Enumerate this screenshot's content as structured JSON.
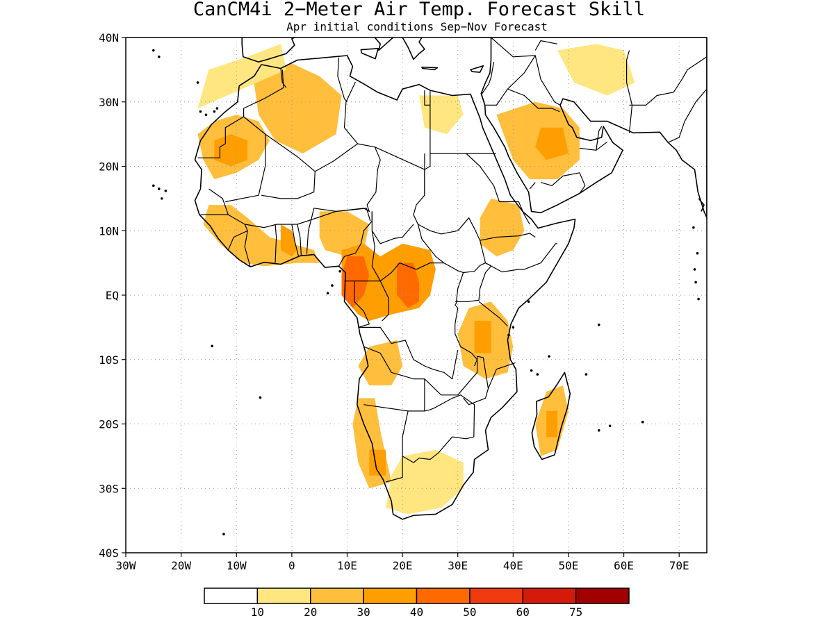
{
  "title": "CanCM4i 2−Meter Air Temp. Forecast Skill",
  "subtitle": "Apr initial conditions  Sep−Nov Forecast",
  "map": {
    "lon_range": [
      -30,
      75
    ],
    "lat_range": [
      -40,
      40
    ],
    "x_ticks": [
      "30W",
      "20W",
      "10W",
      "0",
      "10E",
      "20E",
      "30E",
      "40E",
      "50E",
      "60E",
      "70E"
    ],
    "y_ticks": [
      "40N",
      "30N",
      "20N",
      "10N",
      "EQ",
      "10S",
      "20S",
      "30S",
      "40S"
    ],
    "grid": true
  },
  "colorbar": {
    "labels": [
      "10",
      "20",
      "30",
      "40",
      "50",
      "60",
      "75"
    ],
    "colors": [
      "#ffffff",
      "#ffe680",
      "#ffbe3c",
      "#ff9e00",
      "#ff6a00",
      "#f03a10",
      "#d41a0a",
      "#a00000"
    ]
  },
  "skill_regions": [
    {
      "level": 2,
      "points": [
        [
          -17,
          25
        ],
        [
          -14,
          27
        ],
        [
          -10,
          28
        ],
        [
          -6,
          27
        ],
        [
          -4,
          24
        ],
        [
          -6,
          21
        ],
        [
          -10,
          19
        ],
        [
          -14,
          18
        ],
        [
          -16,
          21
        ]
      ]
    },
    {
      "level": 3,
      "points": [
        [
          -14,
          24
        ],
        [
          -11,
          25
        ],
        [
          -8,
          24
        ],
        [
          -8,
          21
        ],
        [
          -11,
          20
        ],
        [
          -14,
          21
        ]
      ]
    },
    {
      "level": 2,
      "points": [
        [
          -7,
          34
        ],
        [
          0,
          36
        ],
        [
          5,
          34
        ],
        [
          9,
          31
        ],
        [
          8,
          25
        ],
        [
          2,
          22
        ],
        [
          -3,
          24
        ],
        [
          -6,
          28
        ]
      ]
    },
    {
      "level": 2,
      "points": [
        [
          -15,
          14
        ],
        [
          -11,
          14
        ],
        [
          -8,
          12
        ],
        [
          -4,
          9
        ],
        [
          0,
          8
        ],
        [
          4,
          7
        ],
        [
          5,
          5
        ],
        [
          1,
          5
        ],
        [
          -5,
          4.5
        ],
        [
          -9,
          5
        ],
        [
          -13,
          8
        ],
        [
          -16,
          11
        ]
      ]
    },
    {
      "level": 3,
      "points": [
        [
          -2,
          11
        ],
        [
          0,
          10
        ],
        [
          1,
          7
        ],
        [
          0,
          6
        ],
        [
          -2,
          7
        ]
      ]
    },
    {
      "level": 2,
      "points": [
        [
          5,
          13
        ],
        [
          10,
          13
        ],
        [
          14,
          11
        ],
        [
          13,
          7
        ],
        [
          10,
          6
        ],
        [
          6,
          7
        ],
        [
          5,
          9
        ]
      ]
    },
    {
      "level": 3,
      "points": [
        [
          9,
          7
        ],
        [
          13,
          8
        ],
        [
          16,
          6
        ],
        [
          20,
          8
        ],
        [
          25,
          7
        ],
        [
          26,
          4
        ],
        [
          25,
          0
        ],
        [
          23,
          -2
        ],
        [
          18,
          -3
        ],
        [
          14,
          -4
        ],
        [
          12,
          -3
        ],
        [
          9,
          0
        ],
        [
          9,
          4
        ]
      ]
    },
    {
      "level": 4,
      "points": [
        [
          10,
          6
        ],
        [
          13,
          6
        ],
        [
          14,
          3
        ],
        [
          13,
          0
        ],
        [
          11,
          -2
        ],
        [
          9,
          0
        ],
        [
          9,
          3
        ]
      ]
    },
    {
      "level": 4,
      "points": [
        [
          19,
          5
        ],
        [
          22,
          5
        ],
        [
          23,
          2
        ],
        [
          23,
          -1
        ],
        [
          21,
          -2
        ],
        [
          19,
          0
        ]
      ]
    },
    {
      "level": 2,
      "points": [
        [
          14,
          -8
        ],
        [
          19,
          -7
        ],
        [
          20,
          -11
        ],
        [
          18,
          -14
        ],
        [
          14,
          -14
        ],
        [
          12,
          -11
        ]
      ]
    },
    {
      "level": 2,
      "points": [
        [
          12,
          -16
        ],
        [
          15,
          -16
        ],
        [
          16,
          -21
        ],
        [
          17,
          -25
        ],
        [
          18,
          -29
        ],
        [
          14,
          -30
        ],
        [
          12,
          -26
        ],
        [
          11,
          -20
        ]
      ]
    },
    {
      "level": 3,
      "points": [
        [
          14,
          -24
        ],
        [
          17,
          -24
        ],
        [
          17,
          -28
        ],
        [
          14,
          -28
        ]
      ]
    },
    {
      "level": 1,
      "points": [
        [
          20,
          -25
        ],
        [
          26,
          -24
        ],
        [
          31,
          -26
        ],
        [
          31,
          -30
        ],
        [
          27,
          -33
        ],
        [
          21,
          -34
        ],
        [
          17,
          -33
        ],
        [
          18,
          -28
        ]
      ]
    },
    {
      "level": 2,
      "points": [
        [
          32,
          -2
        ],
        [
          36,
          -1
        ],
        [
          39,
          -4
        ],
        [
          40,
          -8
        ],
        [
          39,
          -12
        ],
        [
          35,
          -13
        ],
        [
          31,
          -11
        ],
        [
          30,
          -6
        ]
      ]
    },
    {
      "level": 3,
      "points": [
        [
          33,
          -4
        ],
        [
          36,
          -4
        ],
        [
          36,
          -9
        ],
        [
          33,
          -9
        ]
      ]
    },
    {
      "level": 2,
      "points": [
        [
          36,
          15
        ],
        [
          41,
          14
        ],
        [
          42,
          10
        ],
        [
          40,
          7
        ],
        [
          37,
          6
        ],
        [
          34,
          8
        ],
        [
          34,
          12
        ]
      ]
    },
    {
      "level": 2,
      "points": [
        [
          37,
          28
        ],
        [
          44,
          30
        ],
        [
          49,
          29
        ],
        [
          52,
          26
        ],
        [
          52,
          21
        ],
        [
          48,
          18
        ],
        [
          43,
          18
        ],
        [
          40,
          21
        ]
      ]
    },
    {
      "level": 3,
      "points": [
        [
          45,
          26
        ],
        [
          49,
          26
        ],
        [
          50,
          22
        ],
        [
          46,
          21
        ],
        [
          44,
          23
        ]
      ]
    },
    {
      "level": 2,
      "points": [
        [
          46,
          -15
        ],
        [
          49,
          -14
        ],
        [
          50,
          -18
        ],
        [
          48,
          -24
        ],
        [
          45,
          -25
        ],
        [
          44,
          -20
        ]
      ]
    },
    {
      "level": 3,
      "points": [
        [
          46,
          -18
        ],
        [
          48,
          -18
        ],
        [
          48,
          -22
        ],
        [
          46,
          -22
        ]
      ]
    },
    {
      "level": 1,
      "points": [
        [
          48,
          38
        ],
        [
          55,
          39
        ],
        [
          60,
          38
        ],
        [
          62,
          33
        ],
        [
          57,
          31
        ],
        [
          51,
          33
        ]
      ]
    },
    {
      "level": 1,
      "points": [
        [
          23,
          31
        ],
        [
          30,
          31
        ],
        [
          31,
          28
        ],
        [
          28,
          25
        ],
        [
          24,
          26
        ]
      ]
    },
    {
      "level": 1,
      "points": [
        [
          -17,
          29
        ],
        [
          -15,
          35
        ],
        [
          -8,
          37
        ],
        [
          -2,
          39
        ],
        [
          -1,
          35
        ]
      ]
    }
  ]
}
